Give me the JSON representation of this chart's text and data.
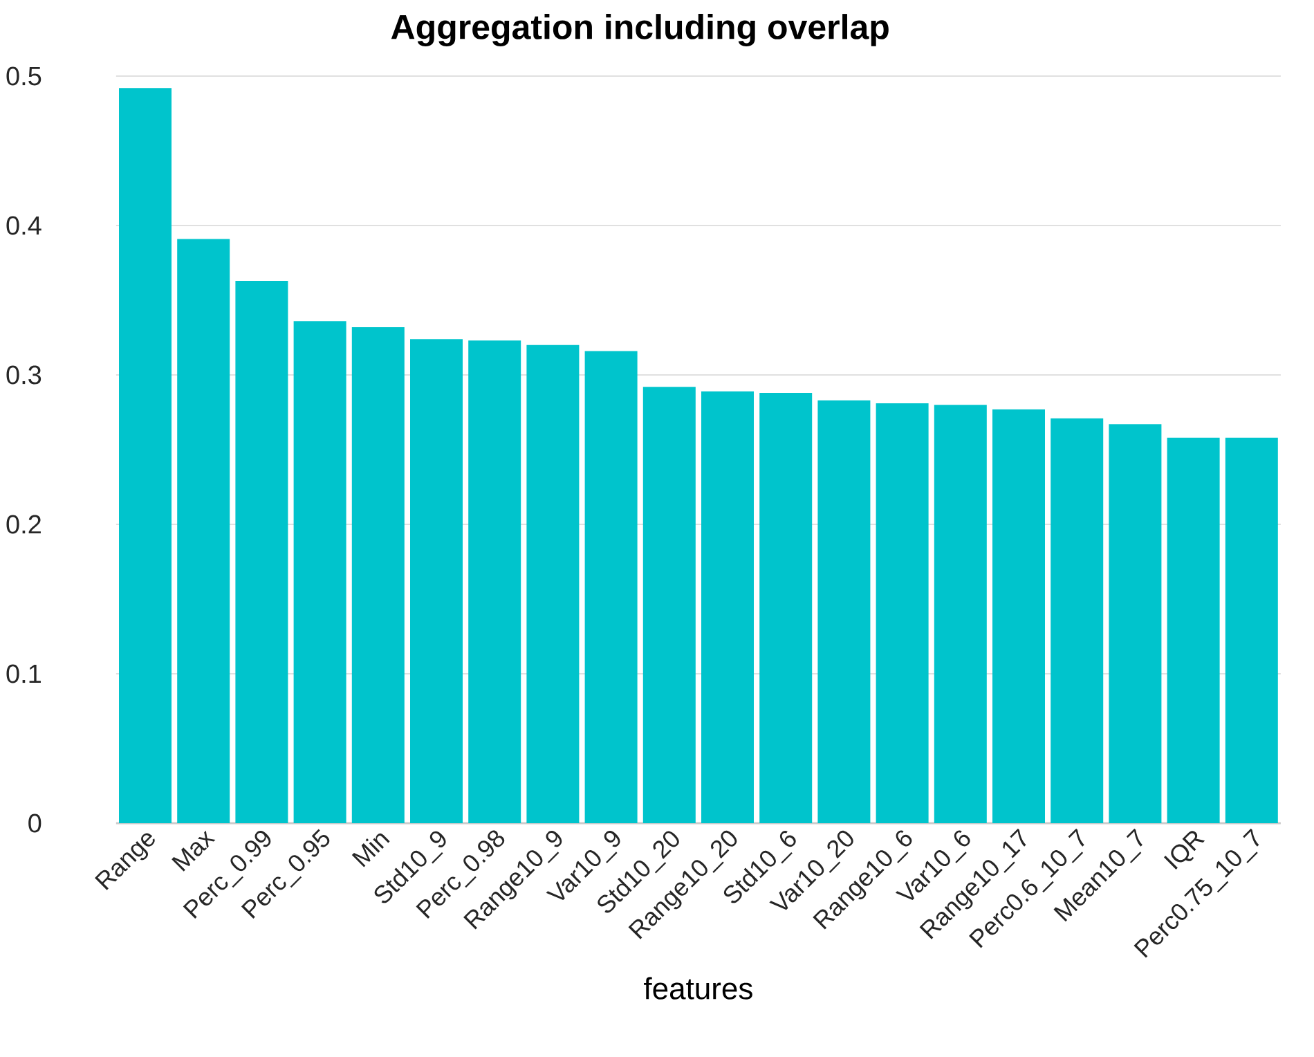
{
  "chart_data": {
    "type": "bar",
    "title": "Aggregation including overlap",
    "xlabel": "features",
    "categories": [
      "Range",
      "Max",
      "Perc_0.99",
      "Perc_0.95",
      "Min",
      "Std10_9",
      "Perc_0.98",
      "Range10_9",
      "Var10_9",
      "Std10_20",
      "Range10_20",
      "Std10_6",
      "Var10_20",
      "Range10_6",
      "Var10_6",
      "Range10_17",
      "Perc0.6_10_7",
      "Mean10_7",
      "IQR",
      "Perc0.75_10_7"
    ],
    "values": [
      0.492,
      0.391,
      0.363,
      0.336,
      0.332,
      0.324,
      0.323,
      0.32,
      0.316,
      0.292,
      0.289,
      0.288,
      0.283,
      0.281,
      0.28,
      0.277,
      0.271,
      0.267,
      0.258,
      0.258
    ],
    "color": "#00c4cc",
    "ylim": [
      0,
      0.5
    ],
    "yticks": [
      0,
      0.1,
      0.2,
      0.3,
      0.4,
      0.5
    ],
    "grid": "y"
  }
}
